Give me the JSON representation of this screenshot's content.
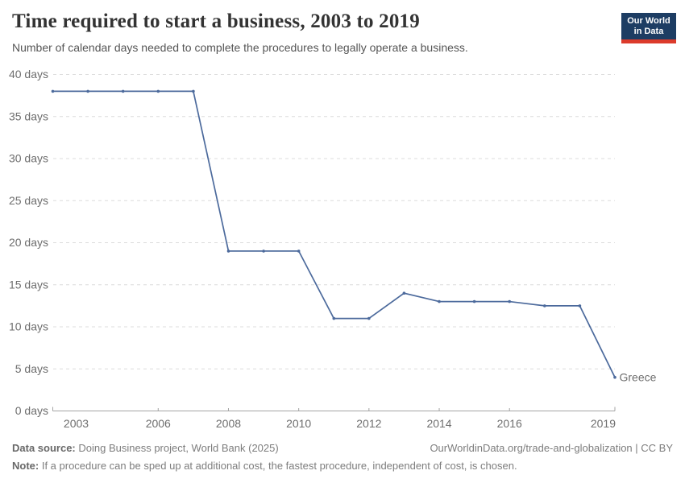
{
  "header": {
    "title": "Time required to start a business, 2003 to 2019",
    "subtitle": "Number of calendar days needed to complete the procedures to legally operate a business."
  },
  "logo": {
    "line1": "Our World",
    "line2": "in Data",
    "bg_color": "#1d3d63",
    "bar_color": "#dc3b2b"
  },
  "chart_data": {
    "type": "line",
    "title": "Time required to start a business, 2003 to 2019",
    "xlabel": "",
    "ylabel": "",
    "x": [
      2003,
      2004,
      2005,
      2006,
      2007,
      2008,
      2009,
      2010,
      2011,
      2012,
      2013,
      2014,
      2015,
      2016,
      2017,
      2018,
      2019
    ],
    "series": [
      {
        "name": "Greece",
        "color": "#4c6a9c",
        "values": [
          38,
          38,
          38,
          38,
          38,
          19,
          19,
          19,
          11,
          11,
          14,
          13,
          13,
          13,
          12.5,
          12.5,
          4
        ]
      }
    ],
    "end_label": "Greece",
    "x_ticks": [
      2003,
      2006,
      2008,
      2010,
      2012,
      2014,
      2016,
      2019
    ],
    "y_ticks": [
      0,
      5,
      10,
      15,
      20,
      25,
      30,
      35,
      40
    ],
    "y_tick_suffix": " days",
    "xlim": [
      2003,
      2019
    ],
    "ylim": [
      0,
      40
    ],
    "grid": "horizontal-dashed",
    "legend_position": "end-of-line"
  },
  "footer": {
    "datasource_label": "Data source:",
    "datasource_text": "Doing Business project, World Bank (2025)",
    "credit": "OurWorldinData.org/trade-and-globalization | CC BY",
    "note_label": "Note:",
    "note_text": "If a procedure can be sped up at additional cost, the fastest procedure, independent of cost, is chosen."
  },
  "colors": {
    "line": "#4c6a9c",
    "grid": "#dcdcdc",
    "axis": "#a3a3a3",
    "tick_text": "#6e6e6e"
  }
}
